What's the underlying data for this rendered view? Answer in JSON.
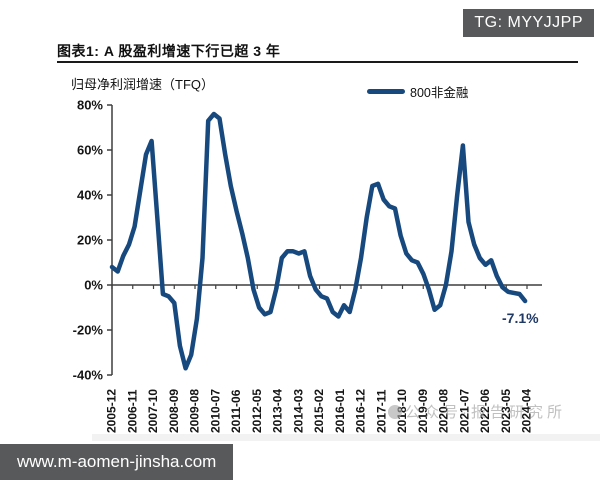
{
  "header": {
    "badge": "TG: MYYJJPP"
  },
  "title": "图表1: A 股盈利增速下行已超 3 年",
  "chart": {
    "subtitle": "归母净利润增速（TFQ）",
    "legend": "800非金融",
    "annotation": "-7.1%",
    "watermark": "公众号·报告研究所"
  },
  "footer": {
    "url": "www.m-aomen-jinsha.com"
  },
  "chart_data": {
    "type": "line",
    "title": "归母净利润增速（TFQ）",
    "series_name": "800非金融",
    "unit": "%",
    "ylim": [
      -40,
      80
    ],
    "ytick_step": 20,
    "grid": false,
    "legend_position": "top-right",
    "line_color": "#17497f",
    "axis_color": "#3f3f3f",
    "annotation_color": "#1f3864",
    "y_ticks": [
      {
        "label": "80%",
        "v": 80
      },
      {
        "label": "60%",
        "v": 60
      },
      {
        "label": "40%",
        "v": 40
      },
      {
        "label": "20%",
        "v": 20
      },
      {
        "label": "0%",
        "v": 0
      },
      {
        "label": "-20%",
        "v": -20
      },
      {
        "label": "-40%",
        "v": -40
      }
    ],
    "x_tick_labels": [
      "2005-12",
      "2006-11",
      "2007-10",
      "2008-09",
      "2009-08",
      "2010-07",
      "2011-06",
      "2012-05",
      "2013-04",
      "2014-03",
      "2015-02",
      "2016-01",
      "2016-12",
      "2017-11",
      "2018-10",
      "2019-09",
      "2020-08",
      "2021-07",
      "2022-06",
      "2023-05",
      "2024-04"
    ],
    "points": [
      [
        "2005-12",
        8
      ],
      [
        "2006-03",
        6
      ],
      [
        "2006-06",
        13
      ],
      [
        "2006-09",
        18
      ],
      [
        "2006-12",
        26
      ],
      [
        "2007-03",
        42
      ],
      [
        "2007-06",
        58
      ],
      [
        "2007-09",
        64
      ],
      [
        "2007-12",
        30
      ],
      [
        "2008-03",
        -4
      ],
      [
        "2008-06",
        -5
      ],
      [
        "2008-09",
        -8
      ],
      [
        "2008-12",
        -27
      ],
      [
        "2009-03",
        -37
      ],
      [
        "2009-06",
        -31
      ],
      [
        "2009-09",
        -15
      ],
      [
        "2009-12",
        12
      ],
      [
        "2010-03",
        73
      ],
      [
        "2010-06",
        76
      ],
      [
        "2010-09",
        74
      ],
      [
        "2010-12",
        58
      ],
      [
        "2011-03",
        44
      ],
      [
        "2011-06",
        33
      ],
      [
        "2011-09",
        23
      ],
      [
        "2011-12",
        12
      ],
      [
        "2012-03",
        -2
      ],
      [
        "2012-06",
        -10
      ],
      [
        "2012-09",
        -13
      ],
      [
        "2012-12",
        -12
      ],
      [
        "2013-03",
        -2
      ],
      [
        "2013-06",
        12
      ],
      [
        "2013-09",
        15
      ],
      [
        "2013-12",
        15
      ],
      [
        "2014-03",
        14
      ],
      [
        "2014-06",
        15
      ],
      [
        "2014-09",
        4
      ],
      [
        "2014-12",
        -2
      ],
      [
        "2015-03",
        -5
      ],
      [
        "2015-06",
        -6
      ],
      [
        "2015-09",
        -12
      ],
      [
        "2015-12",
        -14
      ],
      [
        "2016-03",
        -9
      ],
      [
        "2016-06",
        -12
      ],
      [
        "2016-09",
        -2
      ],
      [
        "2016-12",
        12
      ],
      [
        "2017-03",
        30
      ],
      [
        "2017-06",
        44
      ],
      [
        "2017-09",
        45
      ],
      [
        "2017-12",
        38
      ],
      [
        "2018-03",
        35
      ],
      [
        "2018-06",
        34
      ],
      [
        "2018-09",
        22
      ],
      [
        "2018-12",
        14
      ],
      [
        "2019-03",
        11
      ],
      [
        "2019-06",
        10
      ],
      [
        "2019-09",
        5
      ],
      [
        "2019-12",
        -2
      ],
      [
        "2020-03",
        -11
      ],
      [
        "2020-06",
        -9
      ],
      [
        "2020-09",
        0
      ],
      [
        "2020-12",
        15
      ],
      [
        "2021-03",
        40
      ],
      [
        "2021-06",
        62
      ],
      [
        "2021-09",
        28
      ],
      [
        "2021-12",
        18
      ],
      [
        "2022-03",
        12
      ],
      [
        "2022-06",
        9
      ],
      [
        "2022-09",
        11
      ],
      [
        "2022-12",
        4
      ],
      [
        "2023-03",
        -1
      ],
      [
        "2023-06",
        -3
      ],
      [
        "2023-09",
        -3.5
      ],
      [
        "2023-12",
        -4
      ],
      [
        "2024-03",
        -7.1
      ]
    ]
  }
}
